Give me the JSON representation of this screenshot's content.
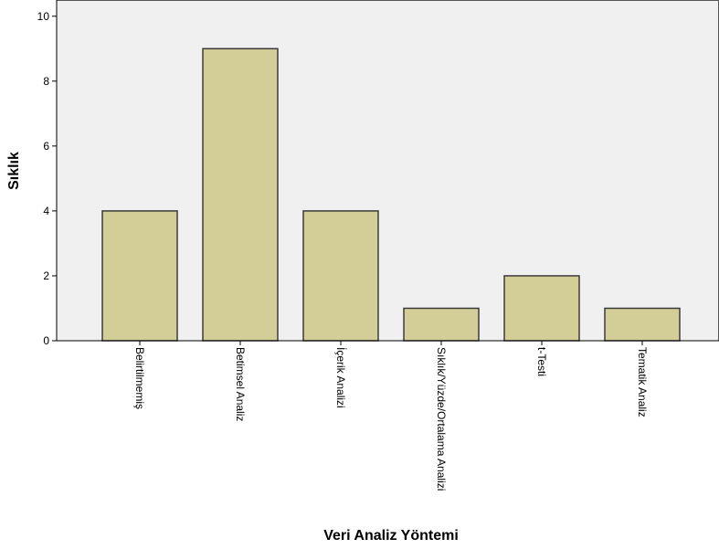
{
  "chart_data": {
    "type": "bar",
    "categories": [
      "Belirtilmemiş",
      "Betimsel Analiz",
      "İçerik Analizi",
      "Sıklık/Yüzde/Ortalama Analizi",
      "t-Testi",
      "Tematik Analiz"
    ],
    "values": [
      4,
      9,
      4,
      1,
      2,
      1
    ],
    "xlabel": "Veri Analiz Yöntemi",
    "ylabel": "Sıklık",
    "ylim": [
      0,
      10
    ],
    "yticks": [
      0,
      2,
      4,
      6,
      8,
      10
    ],
    "grid": false,
    "colors": {
      "plot_background": "#f0f0f0",
      "bar_fill": "#d3ce97",
      "bar_stroke": "#3a3a3a",
      "axis": "#000000"
    }
  }
}
